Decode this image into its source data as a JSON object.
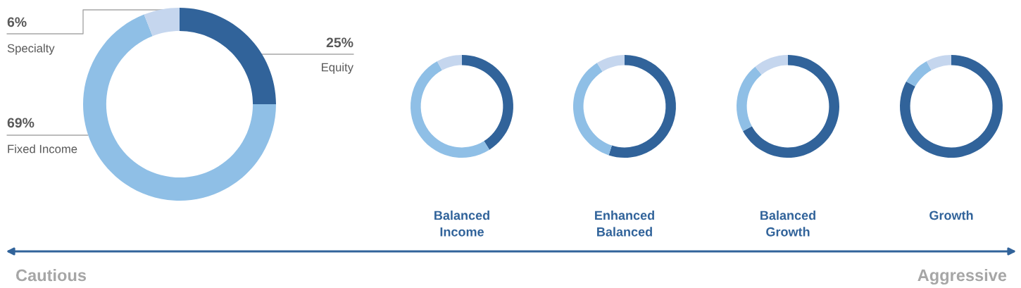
{
  "chart_data": [
    {
      "type": "donut",
      "categories": [
        "Equity",
        "Fixed Income",
        "Specialty"
      ],
      "values": [
        25,
        69,
        6
      ],
      "colors": [
        "#31639a",
        "#8fbfe6",
        "#c5d6ee"
      ],
      "value_labels": [
        "25%",
        "69%",
        "6%"
      ],
      "annotations": [
        "Cautious",
        "Aggressive"
      ]
    },
    {
      "type": "donut",
      "title": "Balanced Income",
      "categories": [
        null,
        null,
        null
      ],
      "values": [
        41,
        51,
        8
      ],
      "colors": [
        "#31639a",
        "#8fbfe6",
        "#c5d6ee"
      ]
    },
    {
      "type": "donut",
      "title": "Enhanced Balanced",
      "categories": [
        null,
        null,
        null
      ],
      "values": [
        55,
        36,
        9
      ],
      "colors": [
        "#31639a",
        "#8fbfe6",
        "#c5d6ee"
      ]
    },
    {
      "type": "donut",
      "title": "Balanced Growth",
      "categories": [
        null,
        null,
        null
      ],
      "values": [
        67,
        22,
        11
      ],
      "colors": [
        "#31639a",
        "#8fbfe6",
        "#c5d6ee"
      ]
    },
    {
      "type": "donut",
      "title": "Growth",
      "categories": [
        null,
        null,
        null
      ],
      "values": [
        83,
        9,
        8
      ],
      "colors": [
        "#31639a",
        "#8fbfe6",
        "#c5d6ee"
      ]
    }
  ]
}
